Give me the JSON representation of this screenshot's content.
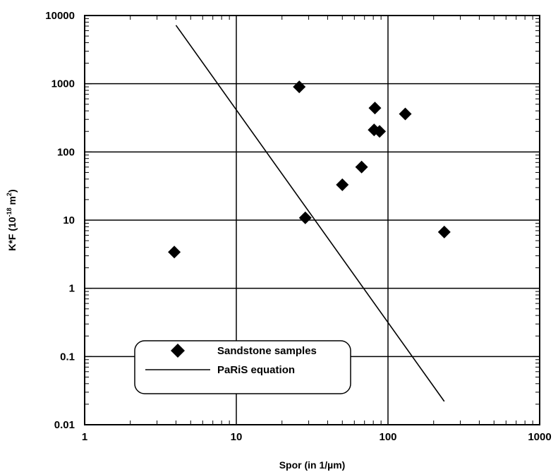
{
  "chart_data": {
    "type": "scatter",
    "x_scale": "log",
    "y_scale": "log",
    "xlim": [
      1,
      1000
    ],
    "ylim": [
      0.01,
      10000
    ],
    "grid": true,
    "legend_position": "bottom-left",
    "xlabel": "Spor (in 1/µm)",
    "ylabel_main": "K*F (10",
    "ylabel_sup": "-18",
    "ylabel_unit": " m",
    "ylabel_unit_sup": "2",
    "ylabel_end": ")",
    "x_tick_labels": [
      "1",
      "10",
      "100",
      "1000"
    ],
    "y_tick_labels": [
      "0.01",
      "0.1",
      "1",
      "10",
      "100",
      "1000",
      "10000"
    ],
    "x_ticks": [
      1,
      10,
      100,
      1000
    ],
    "y_ticks": [
      0.01,
      0.1,
      1,
      10,
      100,
      1000,
      10000
    ],
    "series": [
      {
        "name": "Sandstone samples",
        "kind": "scatter",
        "marker": "diamond",
        "color": "#000000",
        "points": [
          {
            "x": 3.9,
            "y": 3.4
          },
          {
            "x": 26,
            "y": 900
          },
          {
            "x": 28.5,
            "y": 10.8
          },
          {
            "x": 50,
            "y": 33
          },
          {
            "x": 67,
            "y": 60
          },
          {
            "x": 82,
            "y": 440
          },
          {
            "x": 81,
            "y": 210
          },
          {
            "x": 88,
            "y": 200
          },
          {
            "x": 130,
            "y": 360
          },
          {
            "x": 235,
            "y": 6.7
          }
        ]
      },
      {
        "name": "PaRiS equation",
        "kind": "line",
        "color": "#000000",
        "points": [
          {
            "x": 4,
            "y": 7200
          },
          {
            "x": 235,
            "y": 0.022
          }
        ]
      }
    ]
  }
}
